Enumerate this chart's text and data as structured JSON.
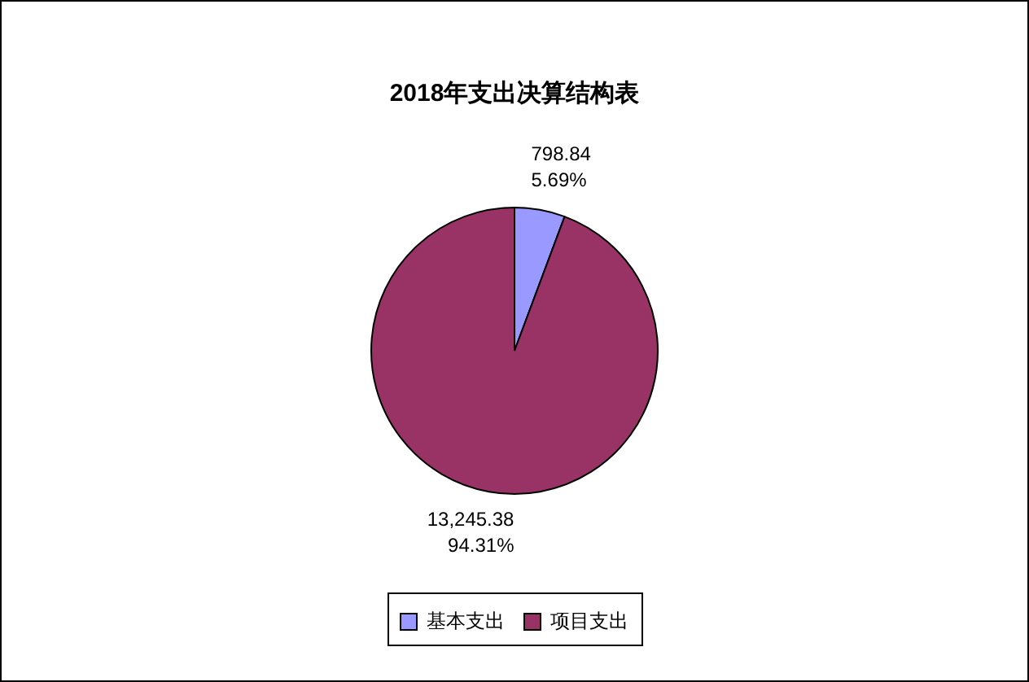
{
  "chart_data": {
    "type": "pie",
    "title": "2018年支出决算结构表",
    "categories": [
      "基本支出",
      "项目支出"
    ],
    "values": [
      798.84,
      13245.38
    ],
    "colors": [
      "#9999ff",
      "#993366"
    ],
    "value_labels": [
      "798.84\n5.69%",
      "13,245.38\n94.31%"
    ],
    "legend": "bottom"
  }
}
